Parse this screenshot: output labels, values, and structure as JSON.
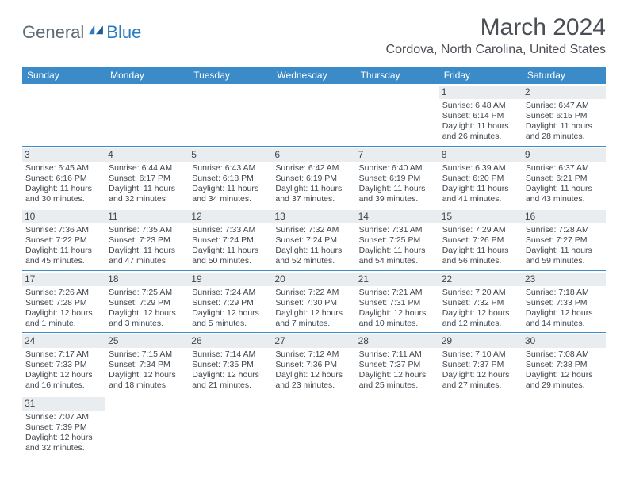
{
  "brand": {
    "part1": "General",
    "part2": "Blue"
  },
  "title": "March 2024",
  "location": "Cordova, North Carolina, United States",
  "colors": {
    "header_bg": "#3b8bc9",
    "header_text": "#ffffff",
    "daynum_bg": "#e9edf0",
    "border": "#3b8bc9",
    "title_color": "#4a4f55",
    "body_text": "#3f464d",
    "logo_gray": "#5e6a74",
    "logo_blue": "#2b7bbf",
    "background": "#ffffff"
  },
  "typography": {
    "title_fontsize": 30,
    "location_fontsize": 16,
    "header_fontsize": 12,
    "cell_fontsize": 10.5,
    "daynum_fontsize": 12
  },
  "week_headers": [
    "Sunday",
    "Monday",
    "Tuesday",
    "Wednesday",
    "Thursday",
    "Friday",
    "Saturday"
  ],
  "weeks": [
    [
      null,
      null,
      null,
      null,
      null,
      {
        "n": "1",
        "sr": "Sunrise: 6:48 AM",
        "ss": "Sunset: 6:14 PM",
        "dl1": "Daylight: 11 hours",
        "dl2": "and 26 minutes."
      },
      {
        "n": "2",
        "sr": "Sunrise: 6:47 AM",
        "ss": "Sunset: 6:15 PM",
        "dl1": "Daylight: 11 hours",
        "dl2": "and 28 minutes."
      }
    ],
    [
      {
        "n": "3",
        "sr": "Sunrise: 6:45 AM",
        "ss": "Sunset: 6:16 PM",
        "dl1": "Daylight: 11 hours",
        "dl2": "and 30 minutes."
      },
      {
        "n": "4",
        "sr": "Sunrise: 6:44 AM",
        "ss": "Sunset: 6:17 PM",
        "dl1": "Daylight: 11 hours",
        "dl2": "and 32 minutes."
      },
      {
        "n": "5",
        "sr": "Sunrise: 6:43 AM",
        "ss": "Sunset: 6:18 PM",
        "dl1": "Daylight: 11 hours",
        "dl2": "and 34 minutes."
      },
      {
        "n": "6",
        "sr": "Sunrise: 6:42 AM",
        "ss": "Sunset: 6:19 PM",
        "dl1": "Daylight: 11 hours",
        "dl2": "and 37 minutes."
      },
      {
        "n": "7",
        "sr": "Sunrise: 6:40 AM",
        "ss": "Sunset: 6:19 PM",
        "dl1": "Daylight: 11 hours",
        "dl2": "and 39 minutes."
      },
      {
        "n": "8",
        "sr": "Sunrise: 6:39 AM",
        "ss": "Sunset: 6:20 PM",
        "dl1": "Daylight: 11 hours",
        "dl2": "and 41 minutes."
      },
      {
        "n": "9",
        "sr": "Sunrise: 6:37 AM",
        "ss": "Sunset: 6:21 PM",
        "dl1": "Daylight: 11 hours",
        "dl2": "and 43 minutes."
      }
    ],
    [
      {
        "n": "10",
        "sr": "Sunrise: 7:36 AM",
        "ss": "Sunset: 7:22 PM",
        "dl1": "Daylight: 11 hours",
        "dl2": "and 45 minutes."
      },
      {
        "n": "11",
        "sr": "Sunrise: 7:35 AM",
        "ss": "Sunset: 7:23 PM",
        "dl1": "Daylight: 11 hours",
        "dl2": "and 47 minutes."
      },
      {
        "n": "12",
        "sr": "Sunrise: 7:33 AM",
        "ss": "Sunset: 7:24 PM",
        "dl1": "Daylight: 11 hours",
        "dl2": "and 50 minutes."
      },
      {
        "n": "13",
        "sr": "Sunrise: 7:32 AM",
        "ss": "Sunset: 7:24 PM",
        "dl1": "Daylight: 11 hours",
        "dl2": "and 52 minutes."
      },
      {
        "n": "14",
        "sr": "Sunrise: 7:31 AM",
        "ss": "Sunset: 7:25 PM",
        "dl1": "Daylight: 11 hours",
        "dl2": "and 54 minutes."
      },
      {
        "n": "15",
        "sr": "Sunrise: 7:29 AM",
        "ss": "Sunset: 7:26 PM",
        "dl1": "Daylight: 11 hours",
        "dl2": "and 56 minutes."
      },
      {
        "n": "16",
        "sr": "Sunrise: 7:28 AM",
        "ss": "Sunset: 7:27 PM",
        "dl1": "Daylight: 11 hours",
        "dl2": "and 59 minutes."
      }
    ],
    [
      {
        "n": "17",
        "sr": "Sunrise: 7:26 AM",
        "ss": "Sunset: 7:28 PM",
        "dl1": "Daylight: 12 hours",
        "dl2": "and 1 minute."
      },
      {
        "n": "18",
        "sr": "Sunrise: 7:25 AM",
        "ss": "Sunset: 7:29 PM",
        "dl1": "Daylight: 12 hours",
        "dl2": "and 3 minutes."
      },
      {
        "n": "19",
        "sr": "Sunrise: 7:24 AM",
        "ss": "Sunset: 7:29 PM",
        "dl1": "Daylight: 12 hours",
        "dl2": "and 5 minutes."
      },
      {
        "n": "20",
        "sr": "Sunrise: 7:22 AM",
        "ss": "Sunset: 7:30 PM",
        "dl1": "Daylight: 12 hours",
        "dl2": "and 7 minutes."
      },
      {
        "n": "21",
        "sr": "Sunrise: 7:21 AM",
        "ss": "Sunset: 7:31 PM",
        "dl1": "Daylight: 12 hours",
        "dl2": "and 10 minutes."
      },
      {
        "n": "22",
        "sr": "Sunrise: 7:20 AM",
        "ss": "Sunset: 7:32 PM",
        "dl1": "Daylight: 12 hours",
        "dl2": "and 12 minutes."
      },
      {
        "n": "23",
        "sr": "Sunrise: 7:18 AM",
        "ss": "Sunset: 7:33 PM",
        "dl1": "Daylight: 12 hours",
        "dl2": "and 14 minutes."
      }
    ],
    [
      {
        "n": "24",
        "sr": "Sunrise: 7:17 AM",
        "ss": "Sunset: 7:33 PM",
        "dl1": "Daylight: 12 hours",
        "dl2": "and 16 minutes."
      },
      {
        "n": "25",
        "sr": "Sunrise: 7:15 AM",
        "ss": "Sunset: 7:34 PM",
        "dl1": "Daylight: 12 hours",
        "dl2": "and 18 minutes."
      },
      {
        "n": "26",
        "sr": "Sunrise: 7:14 AM",
        "ss": "Sunset: 7:35 PM",
        "dl1": "Daylight: 12 hours",
        "dl2": "and 21 minutes."
      },
      {
        "n": "27",
        "sr": "Sunrise: 7:12 AM",
        "ss": "Sunset: 7:36 PM",
        "dl1": "Daylight: 12 hours",
        "dl2": "and 23 minutes."
      },
      {
        "n": "28",
        "sr": "Sunrise: 7:11 AM",
        "ss": "Sunset: 7:37 PM",
        "dl1": "Daylight: 12 hours",
        "dl2": "and 25 minutes."
      },
      {
        "n": "29",
        "sr": "Sunrise: 7:10 AM",
        "ss": "Sunset: 7:37 PM",
        "dl1": "Daylight: 12 hours",
        "dl2": "and 27 minutes."
      },
      {
        "n": "30",
        "sr": "Sunrise: 7:08 AM",
        "ss": "Sunset: 7:38 PM",
        "dl1": "Daylight: 12 hours",
        "dl2": "and 29 minutes."
      }
    ],
    [
      {
        "n": "31",
        "sr": "Sunrise: 7:07 AM",
        "ss": "Sunset: 7:39 PM",
        "dl1": "Daylight: 12 hours",
        "dl2": "and 32 minutes."
      },
      null,
      null,
      null,
      null,
      null,
      null
    ]
  ]
}
